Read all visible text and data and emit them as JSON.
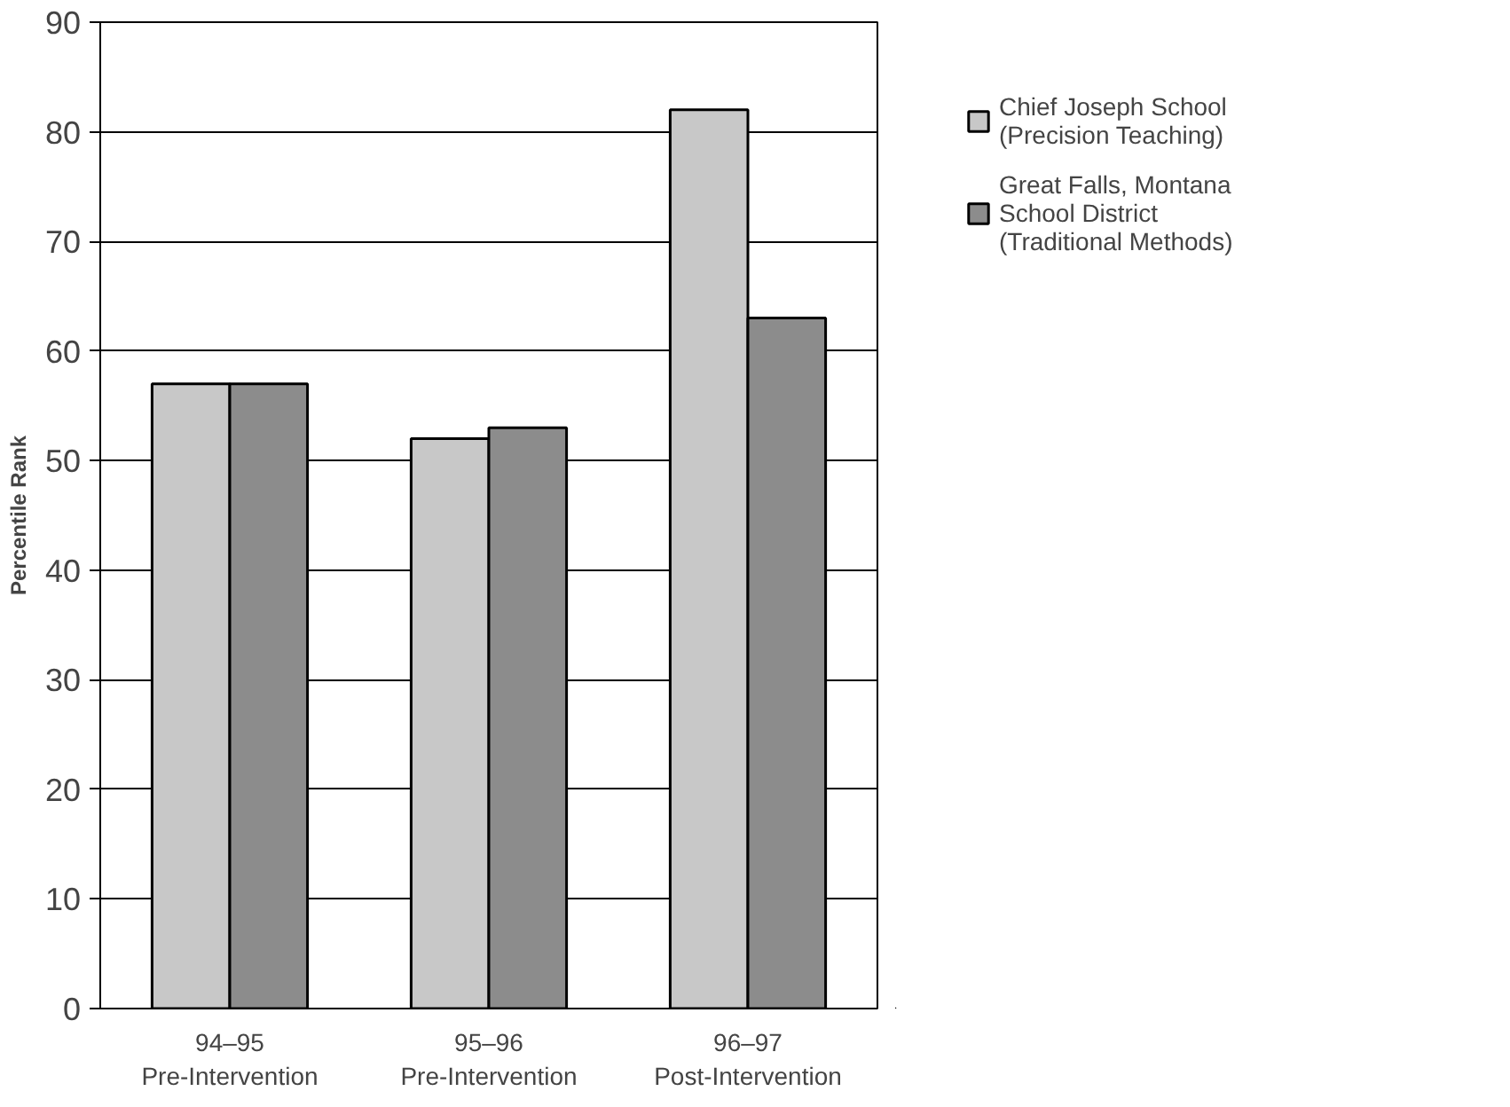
{
  "chart_data": {
    "type": "bar",
    "ylabel": "Percentile Rank",
    "categories": [
      "94–95\nPre-Intervention",
      "95–96\nPre-Intervention",
      "96–97\nPost-Intervention"
    ],
    "series": [
      {
        "name": "Chief Joseph School\n(Precision Teaching)",
        "color": "#c8c8c8",
        "values": [
          57,
          52,
          82
        ]
      },
      {
        "name": "Great Falls, Montana\nSchool District\n(Traditional Methods)",
        "color": "#8c8c8c",
        "values": [
          57,
          53,
          63
        ]
      }
    ],
    "ylim": [
      0,
      90
    ],
    "yticks": [
      0,
      10,
      20,
      30,
      40,
      50,
      60,
      70,
      80,
      90
    ],
    "grid": "y",
    "legend": "top right"
  }
}
